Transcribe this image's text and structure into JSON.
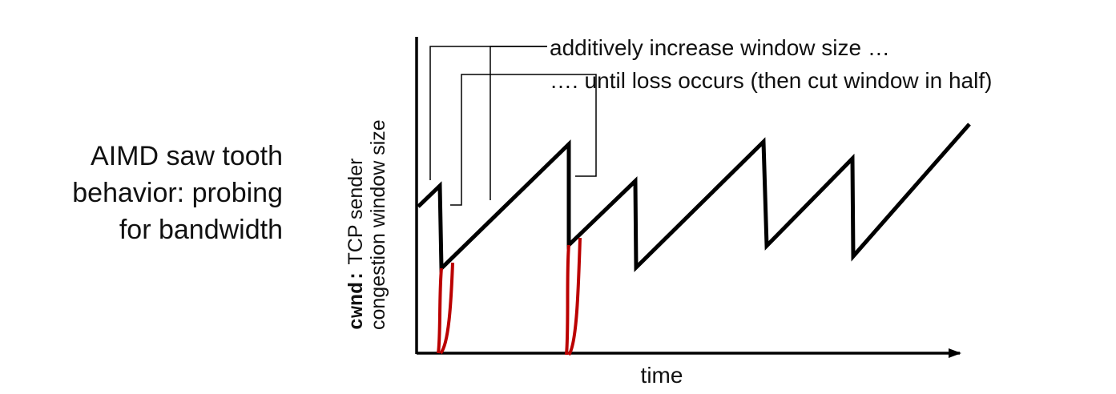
{
  "caption": {
    "line1": "AIMD saw tooth",
    "line2": "behavior: probing",
    "line3": "for bandwidth"
  },
  "annotations": {
    "increase": "additively increase window size …",
    "loss": "…. until loss occurs (then cut window in half)"
  },
  "axes": {
    "x_label": "time",
    "y_label_var": "cwnd:",
    "y_label_line1": " TCP sender",
    "y_label_line2": "congestion window size"
  },
  "colors": {
    "sawtooth": "#000000",
    "slow_start": "#bb0000",
    "axis": "#000000",
    "callout": "#000000"
  }
}
